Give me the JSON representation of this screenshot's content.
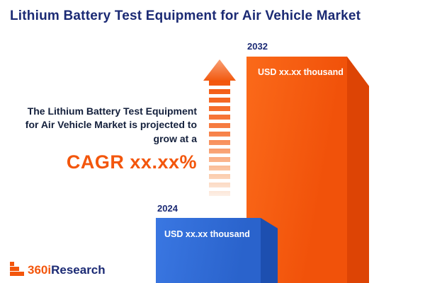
{
  "title": "Lithium Battery Test Equipment for Air Vehicle Market",
  "chart_data": {
    "type": "bar",
    "title": "Lithium Battery Test Equipment for Air Vehicle Market",
    "categories": [
      "2024",
      "2032"
    ],
    "series": [
      {
        "name": "Market value (USD thousand)",
        "values": [
          "xx.xx",
          "xx.xx"
        ]
      }
    ],
    "value_labels": [
      "USD xx.xx thousand",
      "USD xx.xx thousand"
    ],
    "unit": "USD thousand",
    "bar_colors": [
      "#2f6bd8",
      "#f3560c"
    ],
    "legend": "off",
    "grid": "off"
  },
  "annotation": {
    "line1": "The Lithium Battery Test Equipment",
    "line2": "for Air Vehicle Market is projected to",
    "line3": "grow at a",
    "cagr": "CAGR xx.xx%"
  },
  "logo": {
    "part1": "360i",
    "part2": "Research"
  },
  "colors": {
    "title_navy": "#1b2a74",
    "accent_orange": "#f3560c",
    "bar_blue": "#2f6bd8",
    "text_dark": "#14203c"
  }
}
